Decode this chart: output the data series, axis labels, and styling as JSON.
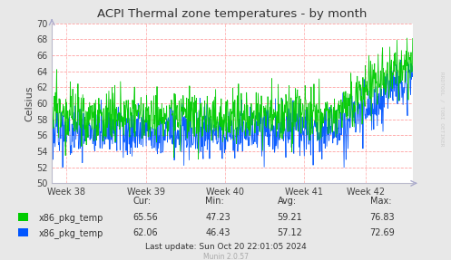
{
  "title": "ACPI Thermal zone temperatures - by month",
  "ylabel": "Celsius",
  "background_color": "#e8e8e8",
  "plot_bg_color": "#ffffff",
  "grid_color": "#ff8888",
  "ylim": [
    50,
    70
  ],
  "yticks": [
    50,
    52,
    54,
    56,
    58,
    60,
    62,
    64,
    66,
    68,
    70
  ],
  "xtick_labels": [
    "Week 38",
    "Week 39",
    "Week 40",
    "Week 41",
    "Week 42"
  ],
  "xtick_positions": [
    0.04,
    0.26,
    0.48,
    0.7,
    0.87
  ],
  "series": [
    {
      "label": "x86_pkg_temp",
      "color": "#00cc00",
      "cur": 65.56,
      "min": 47.23,
      "avg": 59.21,
      "max": 76.83
    },
    {
      "label": "x86_pkg_temp",
      "color": "#0055ff",
      "cur": 62.06,
      "min": 46.43,
      "avg": 57.12,
      "max": 72.69
    }
  ],
  "footer_left": "Munin 2.0.57",
  "footer_right": "Last update: Sun Oct 20 22:01:05 2024",
  "watermark": "RRDTOOL / TOBI OETIKER",
  "n_points": 900
}
